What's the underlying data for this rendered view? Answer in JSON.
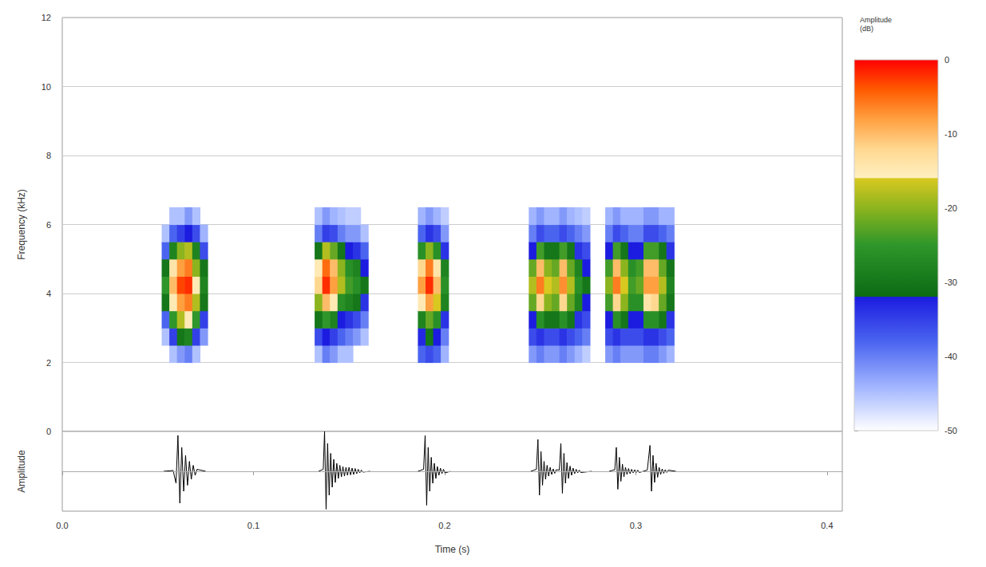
{
  "chart_data": [
    {
      "type": "spectrogram",
      "y_label": "Frequency (kHz)",
      "xlim": [
        0,
        0.408
      ],
      "ylim": [
        0,
        12
      ],
      "yticks": [
        0,
        2,
        4,
        6,
        8,
        10,
        12
      ],
      "grid": true,
      "tick_labels": "y",
      "spectrogram": {
        "time_step": 0.004,
        "freq_step": 0.5,
        "frequencies": [
          2.25,
          2.75,
          3.25,
          3.75,
          4.25,
          4.75,
          5.25,
          5.75,
          6.25
        ],
        "columns": [
          {
            "time": 0.054,
            "db": [
              null,
              -45,
              -38,
              -30,
              -25,
              -30,
              -38,
              -45,
              null
            ]
          },
          {
            "time": 0.058,
            "db": [
              -45,
              -35,
              -25,
              -15,
              -10,
              -14,
              -28,
              -38,
              -45
            ]
          },
          {
            "time": 0.062,
            "db": [
              -42,
              -30,
              -18,
              -8,
              -3,
              -8,
              -20,
              -35,
              -45
            ]
          },
          {
            "time": 0.066,
            "db": [
              -40,
              -28,
              -15,
              -6,
              -2,
              -6,
              -18,
              -32,
              -42
            ]
          },
          {
            "time": 0.07,
            "db": [
              -45,
              -35,
              -25,
              -18,
              -15,
              -20,
              -28,
              -36,
              -45
            ]
          },
          {
            "time": 0.074,
            "db": [
              null,
              -42,
              -35,
              -30,
              -28,
              -30,
              -36,
              -44,
              null
            ]
          },
          {
            "time": 0.134,
            "db": [
              -45,
              -36,
              -30,
              -20,
              -12,
              -15,
              -30,
              -40,
              -45
            ]
          },
          {
            "time": 0.138,
            "db": [
              -40,
              -32,
              -25,
              -10,
              -2,
              -5,
              -18,
              -35,
              -42
            ]
          },
          {
            "time": 0.142,
            "db": [
              -42,
              -35,
              -28,
              -15,
              -8,
              -10,
              -22,
              -36,
              -44
            ]
          },
          {
            "time": 0.146,
            "db": [
              -45,
              -38,
              -32,
              -26,
              -18,
              -20,
              -30,
              -40,
              -45
            ]
          },
          {
            "time": 0.15,
            "db": [
              -45,
              -40,
              -34,
              -28,
              -24,
              -26,
              -32,
              -42,
              -46
            ]
          },
          {
            "time": 0.154,
            "db": [
              null,
              -42,
              -36,
              -30,
              -26,
              -28,
              -34,
              -42,
              -46
            ]
          },
          {
            "time": 0.158,
            "db": [
              null,
              -45,
              -40,
              -34,
              -30,
              -32,
              -38,
              -45,
              null
            ]
          },
          {
            "time": 0.188,
            "db": [
              -38,
              -33,
              -28,
              -15,
              -8,
              -12,
              -26,
              -38,
              -44
            ]
          },
          {
            "time": 0.192,
            "db": [
              -36,
              -30,
              -22,
              -8,
              -2,
              -6,
              -20,
              -34,
              -42
            ]
          },
          {
            "time": 0.196,
            "db": [
              -38,
              -32,
              -26,
              -16,
              -10,
              -14,
              -26,
              -36,
              -44
            ]
          },
          {
            "time": 0.2,
            "db": [
              -44,
              -40,
              -34,
              -28,
              -26,
              -28,
              -34,
              -42,
              -46
            ]
          },
          {
            "time": 0.246,
            "db": [
              -42,
              -36,
              -32,
              -22,
              -18,
              -22,
              -32,
              -40,
              -44
            ]
          },
          {
            "time": 0.25,
            "db": [
              -40,
              -34,
              -26,
              -12,
              -6,
              -10,
              -24,
              -36,
              -42
            ]
          },
          {
            "time": 0.254,
            "db": [
              -42,
              -36,
              -30,
              -20,
              -16,
              -20,
              -30,
              -38,
              -44
            ]
          },
          {
            "time": 0.258,
            "db": [
              -42,
              -36,
              -30,
              -22,
              -18,
              -22,
              -30,
              -38,
              -44
            ]
          },
          {
            "time": 0.262,
            "db": [
              -40,
              -34,
              -26,
              -12,
              -7,
              -10,
              -24,
              -36,
              -42
            ]
          },
          {
            "time": 0.266,
            "db": [
              -42,
              -36,
              -30,
              -22,
              -18,
              -22,
              -30,
              -38,
              -44
            ]
          },
          {
            "time": 0.27,
            "db": [
              -44,
              -38,
              -34,
              -28,
              -26,
              -28,
              -34,
              -40,
              -45
            ]
          },
          {
            "time": 0.274,
            "db": [
              -46,
              -40,
              -36,
              -32,
              -30,
              -32,
              -36,
              -42,
              -46
            ]
          },
          {
            "time": 0.286,
            "db": [
              -42,
              -36,
              -32,
              -24,
              -20,
              -24,
              -32,
              -40,
              -44
            ]
          },
          {
            "time": 0.29,
            "db": [
              -40,
              -34,
              -26,
              -12,
              -6,
              -10,
              -24,
              -36,
              -42
            ]
          },
          {
            "time": 0.294,
            "db": [
              -42,
              -36,
              -30,
              -20,
              -16,
              -20,
              -30,
              -38,
              -44
            ]
          },
          {
            "time": 0.298,
            "db": [
              -42,
              -36,
              -32,
              -26,
              -24,
              -26,
              -32,
              -40,
              -44
            ]
          },
          {
            "time": 0.302,
            "db": [
              -42,
              -36,
              -32,
              -26,
              -22,
              -24,
              -32,
              -40,
              -44
            ]
          },
          {
            "time": 0.306,
            "db": [
              -40,
              -34,
              -26,
              -14,
              -8,
              -10,
              -24,
              -36,
              -42
            ]
          },
          {
            "time": 0.31,
            "db": [
              -40,
              -34,
              -26,
              -12,
              -8,
              -10,
              -24,
              -36,
              -42
            ]
          },
          {
            "time": 0.314,
            "db": [
              -42,
              -36,
              -30,
              -22,
              -18,
              -22,
              -30,
              -38,
              -44
            ]
          },
          {
            "time": 0.318,
            "db": [
              -44,
              -38,
              -34,
              -30,
              -28,
              -30,
              -34,
              -40,
              -44
            ]
          }
        ]
      },
      "colorbar": {
        "label": "Amplitude (dB)",
        "range": [
          -50,
          0
        ],
        "ticks": [
          -50,
          -40,
          -30,
          -20,
          -10,
          0
        ],
        "colormap": [
          {
            "value": 0,
            "color": "#ff0000"
          },
          {
            "value": -4,
            "color": "#ff5a00"
          },
          {
            "value": -8,
            "color": "#ffa040"
          },
          {
            "value": -12,
            "color": "#ffd890"
          },
          {
            "value": -15.9,
            "color": "#fff0c0"
          },
          {
            "value": -16,
            "color": "#d8c820"
          },
          {
            "value": -20,
            "color": "#8cb41e"
          },
          {
            "value": -25,
            "color": "#2e962a"
          },
          {
            "value": -31.9,
            "color": "#0b6b14"
          },
          {
            "value": -32,
            "color": "#1c1ce0"
          },
          {
            "value": -38,
            "color": "#4a64f0"
          },
          {
            "value": -44,
            "color": "#a0b4ff"
          },
          {
            "value": -50,
            "color": "#ffffff"
          }
        ]
      }
    },
    {
      "type": "line",
      "x_label": "Time (s)",
      "y_label": "Amplitude",
      "xlim": [
        0,
        0.408
      ],
      "ylim": [
        -1,
        1
      ],
      "xticks": [
        {
          "value": 0,
          "label": "0.0"
        },
        0.1,
        0.2,
        0.3,
        0.4
      ],
      "yticks": [
        0
      ],
      "grid": true,
      "tick_labels": "x",
      "color": "#000000",
      "x": [
        0.053,
        0.058,
        0.0595,
        0.0605,
        0.0615,
        0.0625,
        0.0635,
        0.0645,
        0.0655,
        0.0665,
        0.0675,
        0.0685,
        0.0695,
        0.0705,
        0.075,
        0.076,
        0.134,
        0.1365,
        0.1372,
        0.138,
        0.1388,
        0.1396,
        0.1404,
        0.1412,
        0.142,
        0.1428,
        0.1436,
        0.1444,
        0.1452,
        0.146,
        0.1468,
        0.1476,
        0.1484,
        0.1492,
        0.15,
        0.1508,
        0.1516,
        0.1524,
        0.1532,
        0.154,
        0.1548,
        0.1556,
        0.1564,
        0.1572,
        0.161,
        0.162,
        0.186,
        0.189,
        0.1898,
        0.1906,
        0.1914,
        0.1922,
        0.193,
        0.1938,
        0.1946,
        0.1954,
        0.1962,
        0.197,
        0.1978,
        0.1986,
        0.1994,
        0.2002,
        0.203,
        0.204,
        0.245,
        0.248,
        0.2488,
        0.2496,
        0.2504,
        0.2512,
        0.252,
        0.2528,
        0.2536,
        0.2544,
        0.2552,
        0.256,
        0.2568,
        0.2576,
        0.2584,
        0.26,
        0.2608,
        0.2616,
        0.2624,
        0.2632,
        0.264,
        0.2648,
        0.2656,
        0.2664,
        0.2672,
        0.268,
        0.2688,
        0.2696,
        0.2704,
        0.2712,
        0.277,
        0.278,
        0.286,
        0.289,
        0.2898,
        0.2906,
        0.2914,
        0.2922,
        0.293,
        0.2938,
        0.2946,
        0.2954,
        0.2962,
        0.297,
        0.2978,
        0.2986,
        0.2994,
        0.3002,
        0.301,
        0.3018,
        0.306,
        0.3074,
        0.3082,
        0.309,
        0.3098,
        0.3106,
        0.3114,
        0.3122,
        0.313,
        0.3138,
        0.3146,
        0.3154,
        0.3162,
        0.317,
        0.321
      ],
      "values": [
        0,
        0.02,
        -0.3,
        0.9,
        -0.8,
        0.6,
        -0.5,
        0.4,
        -0.35,
        0.25,
        -0.2,
        0.15,
        -0.1,
        0.05,
        0,
        null,
        0,
        0.05,
        1.0,
        -0.95,
        0.7,
        -0.6,
        0.45,
        -0.4,
        0.3,
        -0.28,
        0.2,
        -0.18,
        0.15,
        -0.14,
        0.12,
        -0.12,
        0.1,
        -0.1,
        0.1,
        -0.09,
        0.08,
        -0.08,
        0.07,
        -0.06,
        0.05,
        -0.04,
        0.03,
        -0.02,
        0,
        null,
        0,
        0.05,
        0.9,
        -0.85,
        0.6,
        -0.5,
        0.35,
        -0.3,
        0.2,
        -0.18,
        0.12,
        -0.1,
        0.08,
        -0.06,
        0.05,
        -0.04,
        0,
        null,
        0,
        0.05,
        0.8,
        -0.6,
        0.5,
        -0.35,
        0.25,
        -0.2,
        0.15,
        -0.12,
        0.1,
        -0.08,
        0.06,
        -0.05,
        0.04,
        0.03,
        0.7,
        -0.55,
        0.45,
        -0.3,
        0.22,
        -0.18,
        0.13,
        -0.1,
        0.08,
        -0.06,
        0.05,
        -0.04,
        0.03,
        -0.03,
        0,
        null,
        0,
        0.04,
        0.6,
        -0.45,
        0.35,
        -0.25,
        0.18,
        -0.14,
        0.1,
        -0.08,
        0.07,
        -0.06,
        0.05,
        -0.04,
        0.04,
        -0.03,
        0.03,
        -0.03,
        0.03,
        0.65,
        -0.5,
        0.4,
        -0.28,
        0.2,
        -0.15,
        0.1,
        -0.08,
        0.06,
        -0.05,
        0.04,
        -0.03,
        0.03,
        0
      ]
    }
  ]
}
